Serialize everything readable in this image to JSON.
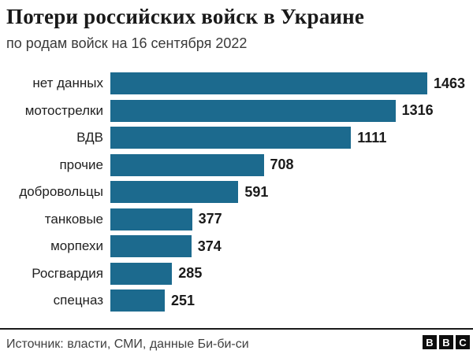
{
  "header": {
    "title": "Потери российских войск в Украине",
    "subtitle": "по родам войск на 16 сентября 2022"
  },
  "chart_data": {
    "type": "bar",
    "orientation": "horizontal",
    "title": "Потери российских войск в Украине",
    "subtitle": "по родам войск на 16 сентября 2022",
    "categories": [
      "нет данных",
      "мотострелки",
      "ВДВ",
      "прочие",
      "добровольцы",
      "танковые",
      "морпехи",
      "Росгвардия",
      "спецназ"
    ],
    "values": [
      1463,
      1316,
      1111,
      708,
      591,
      377,
      374,
      285,
      251
    ],
    "xlim": [
      0,
      1463
    ],
    "grid": false,
    "value_labels": true,
    "bar_color": "#1C6A8E",
    "label_color": "#1f1f1f",
    "value_color": "#1a1a1a"
  },
  "footer": {
    "source": "Источник: власти, СМИ, данные Би-би-си",
    "logo_letters": [
      "B",
      "B",
      "C"
    ]
  }
}
